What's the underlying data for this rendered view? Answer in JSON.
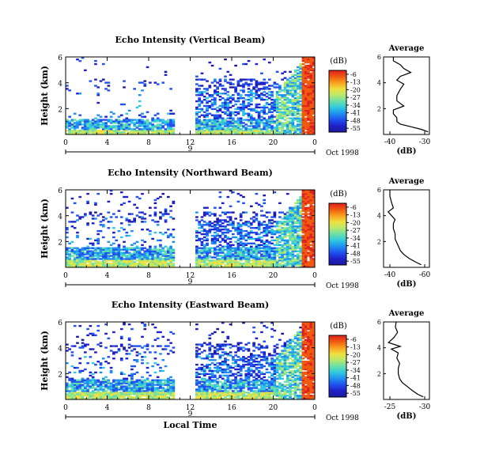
{
  "colorbar": {
    "unit_label": "(dB)",
    "ticks": [
      "-6",
      "-13",
      "-20",
      "-27",
      "-34",
      "-41",
      "-48",
      "-55"
    ],
    "stops": [
      "#e02020",
      "#f05a10",
      "#f8a020",
      "#f0e040",
      "#b8e86a",
      "#6ae0a8",
      "#30c8e0",
      "#2090f0",
      "#2050f0",
      "#2020c8",
      "#1a1a9a"
    ]
  },
  "panels": [
    {
      "title": "Echo Intensity (Vertical Beam)",
      "ylabel": "Height (km)",
      "yticks": [
        "2",
        "4",
        "6"
      ],
      "xticks": [
        "0",
        "4",
        "8",
        "12",
        "16",
        "20",
        "0"
      ],
      "day_marker": "9",
      "date_label": "Oct 1998",
      "avg": {
        "title": "Average",
        "xlabel": "(dB)",
        "xticks": [
          "-40",
          "-30"
        ],
        "yticks": [
          "2",
          "4",
          "6"
        ]
      }
    },
    {
      "title": "Echo Intensity (Northward Beam)",
      "ylabel": "Height (km)",
      "yticks": [
        "2",
        "4",
        "6"
      ],
      "xticks": [
        "0",
        "4",
        "8",
        "12",
        "16",
        "20",
        "0"
      ],
      "day_marker": "9",
      "date_label": "Oct 1998",
      "avg": {
        "title": "Average",
        "xlabel": "(dB)",
        "xticks": [
          "-40",
          "-60"
        ],
        "yticks": [
          "2",
          "4",
          "6"
        ]
      }
    },
    {
      "title": "Echo Intensity (Eastward Beam)",
      "ylabel": "Height (km)",
      "yticks": [
        "2",
        "4",
        "6"
      ],
      "xticks": [
        "0",
        "4",
        "8",
        "12",
        "16",
        "20",
        "0"
      ],
      "day_marker": "9",
      "date_label": "Oct 1998",
      "xlabel": "Local Time",
      "avg": {
        "title": "Average",
        "xlabel": "(dB)",
        "xticks": [
          "-25",
          "-30"
        ],
        "yticks": [
          "2",
          "4",
          "6"
        ]
      }
    }
  ],
  "chart_data": [
    {
      "type": "heatmap",
      "title": "Echo Intensity (Vertical Beam)",
      "ylabel": "Height (km)",
      "xlim": [
        0,
        24
      ],
      "ylim": [
        0,
        6
      ],
      "clim": [
        -55,
        -6
      ],
      "data_gap_hours": [
        10.5,
        12.3
      ],
      "grid": false
    },
    {
      "type": "line",
      "title": "Average",
      "xlabel": "(dB)",
      "x": [
        -29,
        -31,
        -34,
        -37,
        -38,
        -38,
        -39,
        -39,
        -36,
        -38,
        -38,
        -37,
        -36,
        -38,
        -37,
        -34,
        -36,
        -37,
        -39,
        -39
      ],
      "y": [
        0.2,
        0.4,
        0.6,
        0.8,
        1.0,
        1.3,
        1.6,
        1.9,
        2.2,
        2.6,
        3.0,
        3.5,
        3.9,
        4.2,
        4.5,
        4.8,
        5.1,
        5.4,
        5.7,
        6.0
      ],
      "ylim": [
        0,
        6
      ]
    },
    {
      "type": "heatmap",
      "title": "Echo Intensity (Northward Beam)",
      "ylabel": "Height (km)",
      "xlim": [
        0,
        24
      ],
      "ylim": [
        0,
        6
      ],
      "clim": [
        -55,
        -6
      ],
      "data_gap_hours": [
        10.5,
        12.3
      ],
      "grid": false
    },
    {
      "type": "line",
      "title": "Average",
      "xlabel": "(dB)",
      "x": [
        -58,
        -55,
        -51,
        -48,
        -46,
        -45,
        -44,
        -43,
        -43,
        -42,
        -42,
        -43,
        -41,
        -39,
        -42,
        -41,
        -40,
        -40
      ],
      "y": [
        0.2,
        0.4,
        0.7,
        1.0,
        1.3,
        1.6,
        1.9,
        2.2,
        2.6,
        3.0,
        3.4,
        3.7,
        4.0,
        4.3,
        4.6,
        5.0,
        5.5,
        6.0
      ],
      "ylim": [
        0,
        6
      ]
    },
    {
      "type": "heatmap",
      "title": "Echo Intensity (Eastward Beam)",
      "ylabel": "Height (km)",
      "xlabel": "Local Time",
      "xlim": [
        0,
        24
      ],
      "ylim": [
        0,
        6
      ],
      "clim": [
        -55,
        -6
      ],
      "data_gap_hours": [
        10.5,
        12.3
      ],
      "grid": false
    },
    {
      "type": "line",
      "title": "Average",
      "xlabel": "(dB)",
      "x": [
        -29.8,
        -29.0,
        -28.2,
        -27.5,
        -26.8,
        -26.4,
        -26.2,
        -26.2,
        -26.4,
        -26.0,
        -26.2,
        -25.2,
        -26.5,
        -24.8,
        -25.6,
        -26.1,
        -25.8,
        -25.9
      ],
      "y": [
        0.2,
        0.4,
        0.7,
        1.0,
        1.3,
        1.6,
        2.0,
        2.4,
        2.8,
        3.2,
        3.6,
        3.9,
        4.1,
        4.4,
        4.8,
        5.2,
        5.6,
        6.0
      ],
      "ylim": [
        0,
        6
      ]
    }
  ]
}
